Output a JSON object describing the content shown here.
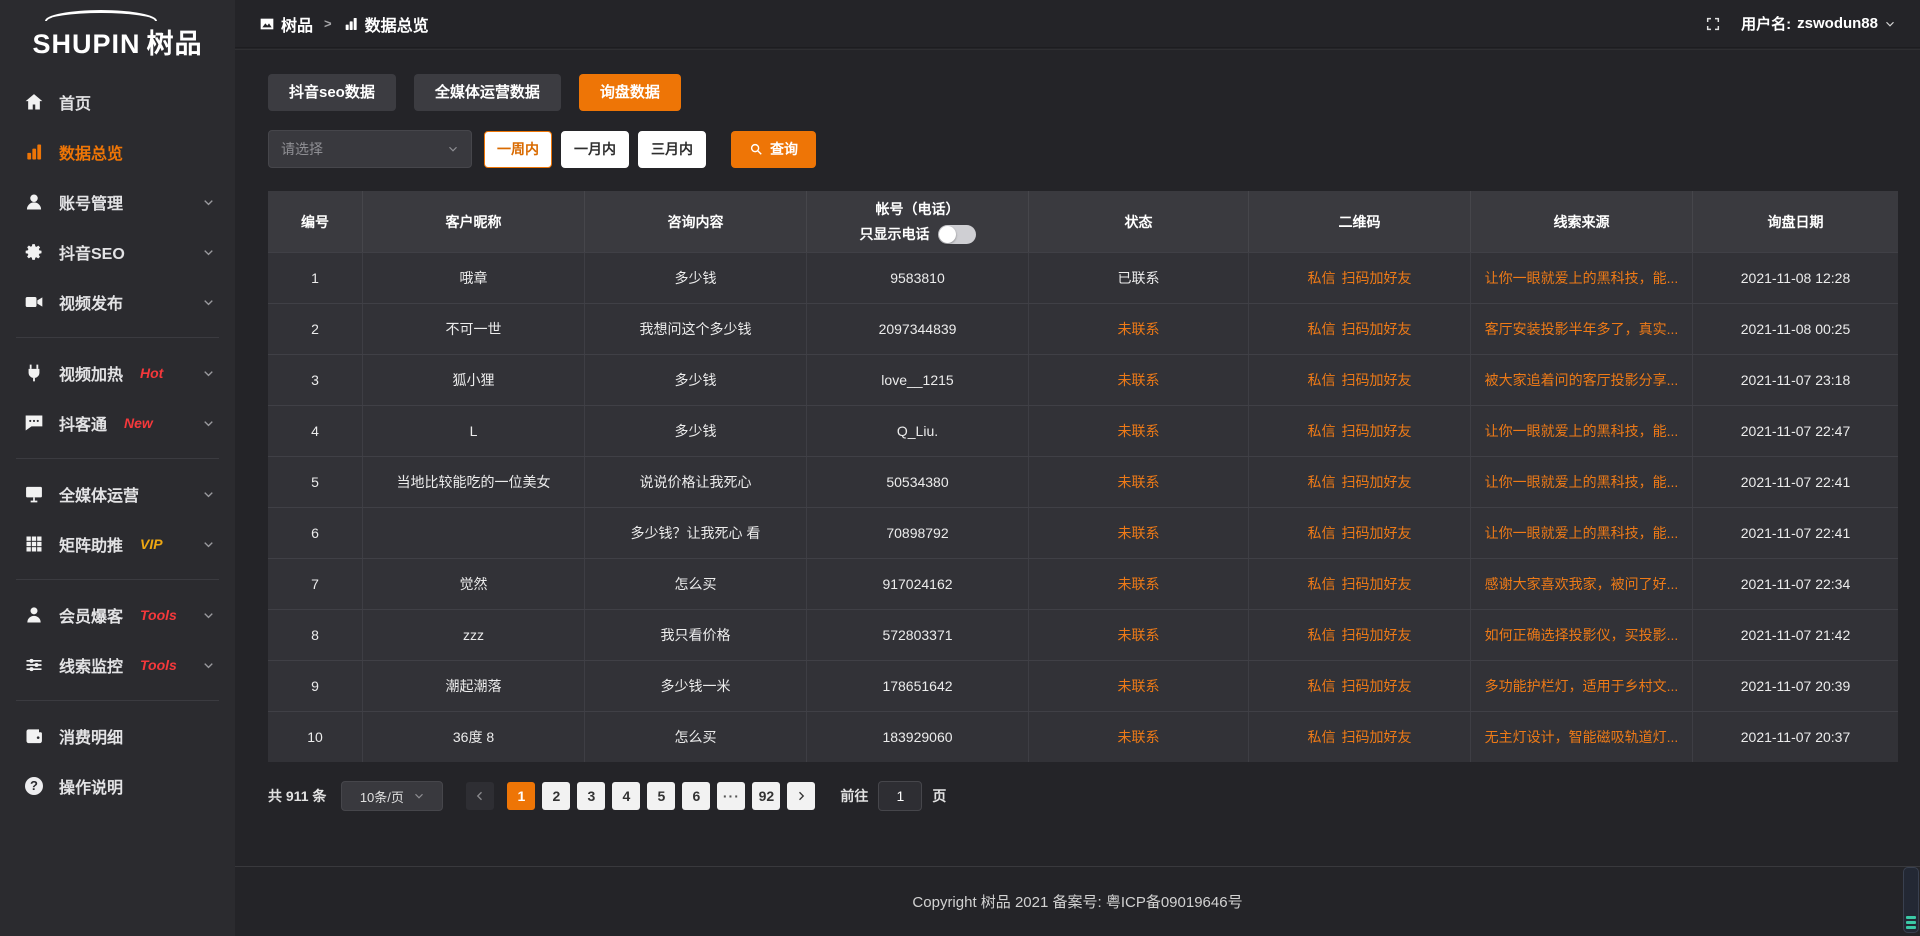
{
  "brand": {
    "logo_en": "SHUPIN",
    "logo_cn": "树品"
  },
  "topbar": {
    "breadcrumb_sep": ">",
    "breadcrumb": [
      {
        "icon": "image",
        "label": "树品"
      },
      {
        "icon": "bar-chart",
        "label": "数据总览"
      }
    ],
    "username_label": "用户名:",
    "username": "zswodun88"
  },
  "sidebar": {
    "items": [
      {
        "name": "sidebar-item-home",
        "icon": "home",
        "label": "首页"
      },
      {
        "name": "sidebar-item-data-overview",
        "icon": "bar-chart",
        "label": "数据总览",
        "active": true
      },
      {
        "name": "sidebar-item-account-management",
        "icon": "user",
        "label": "账号管理",
        "chevron": true
      },
      {
        "name": "sidebar-item-douyin-seo",
        "icon": "gear",
        "label": "抖音SEO",
        "chevron": true
      },
      {
        "name": "sidebar-item-video-publish",
        "icon": "video",
        "label": "视频发布",
        "chevron": true,
        "divider_after": true
      },
      {
        "name": "sidebar-item-video-heat",
        "icon": "plug",
        "label": "视频加热",
        "badge": "Hot",
        "badge_variant": "red",
        "chevron": true
      },
      {
        "name": "sidebar-item-douketong",
        "icon": "chat",
        "label": "抖客通",
        "badge": "New",
        "badge_variant": "red",
        "chevron": true,
        "divider_after": true
      },
      {
        "name": "sidebar-item-media-operation",
        "icon": "monitor",
        "label": "全媒体运营",
        "chevron": true
      },
      {
        "name": "sidebar-item-matrix-boost",
        "icon": "grid",
        "label": "矩阵助推",
        "badge": "VIP",
        "badge_variant": "gold",
        "chevron": true,
        "divider_after": true
      },
      {
        "name": "sidebar-item-member-burst",
        "icon": "member",
        "label": "会员爆客",
        "badge": "Tools",
        "badge_variant": "red",
        "chevron": true
      },
      {
        "name": "sidebar-item-leads-monitor",
        "icon": "sliders",
        "label": "线索监控",
        "badge": "Tools",
        "badge_variant": "red",
        "chevron": true,
        "divider_after": true
      },
      {
        "name": "sidebar-item-consumption-detail",
        "icon": "wallet",
        "label": "消费明细"
      },
      {
        "name": "sidebar-item-instructions",
        "icon": "question",
        "label": "操作说明"
      }
    ]
  },
  "tabs": [
    {
      "name": "tab-douyin-seo-data",
      "label": "抖音seo数据"
    },
    {
      "name": "tab-media-operation-data",
      "label": "全媒体运营数据"
    },
    {
      "name": "tab-inquiry-data",
      "label": "询盘数据",
      "active": true
    }
  ],
  "filter": {
    "select_placeholder": "请选择",
    "ranges": [
      {
        "name": "range-one-week",
        "label": "一周内",
        "active": true
      },
      {
        "name": "range-one-month",
        "label": "一月内"
      },
      {
        "name": "range-three-month",
        "label": "三月内"
      }
    ],
    "search_label": "查询"
  },
  "table": {
    "columns": [
      "编号",
      "客户昵称",
      "咨询内容",
      "帐号（电话）",
      "状态",
      "二维码",
      "线索来源",
      "询盘日期"
    ],
    "phone_toggle_label": "只显示电话",
    "rows": [
      {
        "no": "1",
        "nickname": "哦章",
        "content": "多少钱",
        "account": "9583810",
        "status": "已联系",
        "contacted": true,
        "qr_msg": "私信",
        "qr_add": "扫码加好友",
        "source": "让你一眼就爱上的黑科技，能...",
        "date": "2021-11-08 12:28"
      },
      {
        "no": "2",
        "nickname": "不可一世",
        "content": "我想问这个多少钱",
        "account": "2097344839",
        "status": "未联系",
        "qr_msg": "私信",
        "qr_add": "扫码加好友",
        "source": "客厅安装投影半年多了，真实...",
        "date": "2021-11-08 00:25"
      },
      {
        "no": "3",
        "nickname": "狐小狸",
        "content": "多少钱",
        "account": "love__1215",
        "status": "未联系",
        "qr_msg": "私信",
        "qr_add": "扫码加好友",
        "source": "被大家追着问的客厅投影分享...",
        "date": "2021-11-07 23:18"
      },
      {
        "no": "4",
        "nickname": "L",
        "content": "多少钱",
        "account": "Q_Liu.",
        "status": "未联系",
        "qr_msg": "私信",
        "qr_add": "扫码加好友",
        "source": "让你一眼就爱上的黑科技，能...",
        "date": "2021-11-07 22:47"
      },
      {
        "no": "5",
        "nickname": "当地比较能吃的一位美女",
        "content": "说说价格让我死心",
        "account": "50534380",
        "status": "未联系",
        "qr_msg": "私信",
        "qr_add": "扫码加好友",
        "source": "让你一眼就爱上的黑科技，能...",
        "date": "2021-11-07 22:41"
      },
      {
        "no": "6",
        "nickname": "",
        "content": "多少钱？让我死心 看",
        "account": "70898792",
        "status": "未联系",
        "qr_msg": "私信",
        "qr_add": "扫码加好友",
        "source": "让你一眼就爱上的黑科技，能...",
        "date": "2021-11-07 22:41"
      },
      {
        "no": "7",
        "nickname": "觉然",
        "content": "怎么买",
        "account": "917024162",
        "status": "未联系",
        "qr_msg": "私信",
        "qr_add": "扫码加好友",
        "source": "感谢大家喜欢我家，被问了好...",
        "date": "2021-11-07 22:34"
      },
      {
        "no": "8",
        "nickname": "zzz",
        "content": "我只看价格",
        "account": "572803371",
        "status": "未联系",
        "qr_msg": "私信",
        "qr_add": "扫码加好友",
        "source": "如何正确选择投影仪，买投影...",
        "date": "2021-11-07 21:42"
      },
      {
        "no": "9",
        "nickname": "潮起潮落",
        "content": "多少钱一米",
        "account": "178651642",
        "status": "未联系",
        "qr_msg": "私信",
        "qr_add": "扫码加好友",
        "source": "多功能护栏灯，适用于乡村文...",
        "date": "2021-11-07 20:39"
      },
      {
        "no": "10",
        "nickname": "36度 8",
        "content": "怎么买",
        "account": "183929060",
        "status": "未联系",
        "qr_msg": "私信",
        "qr_add": "扫码加好友",
        "source": "无主灯设计，智能磁吸轨道灯...",
        "date": "2021-11-07 20:37"
      }
    ]
  },
  "pagination": {
    "total_label": "共 911 条",
    "page_size": "10条/页",
    "pages": [
      {
        "label": "1",
        "active": true
      },
      {
        "label": "2"
      },
      {
        "label": "3"
      },
      {
        "label": "4"
      },
      {
        "label": "5"
      },
      {
        "label": "6"
      },
      {
        "label": "···",
        "ellipsis": true
      },
      {
        "label": "92"
      }
    ],
    "goto_label": "前往",
    "goto_value": "1",
    "goto_suffix": "页"
  },
  "footer": {
    "copyright": "Copyright 树品 2021 备案号: 粤ICP备09019646号"
  },
  "colors": {
    "accent": "#ee7506",
    "badge_red": "#f5383b",
    "badge_gold": "#eda712",
    "table_link": "#ee7a17",
    "widget_teal": "#3bc9a6"
  }
}
